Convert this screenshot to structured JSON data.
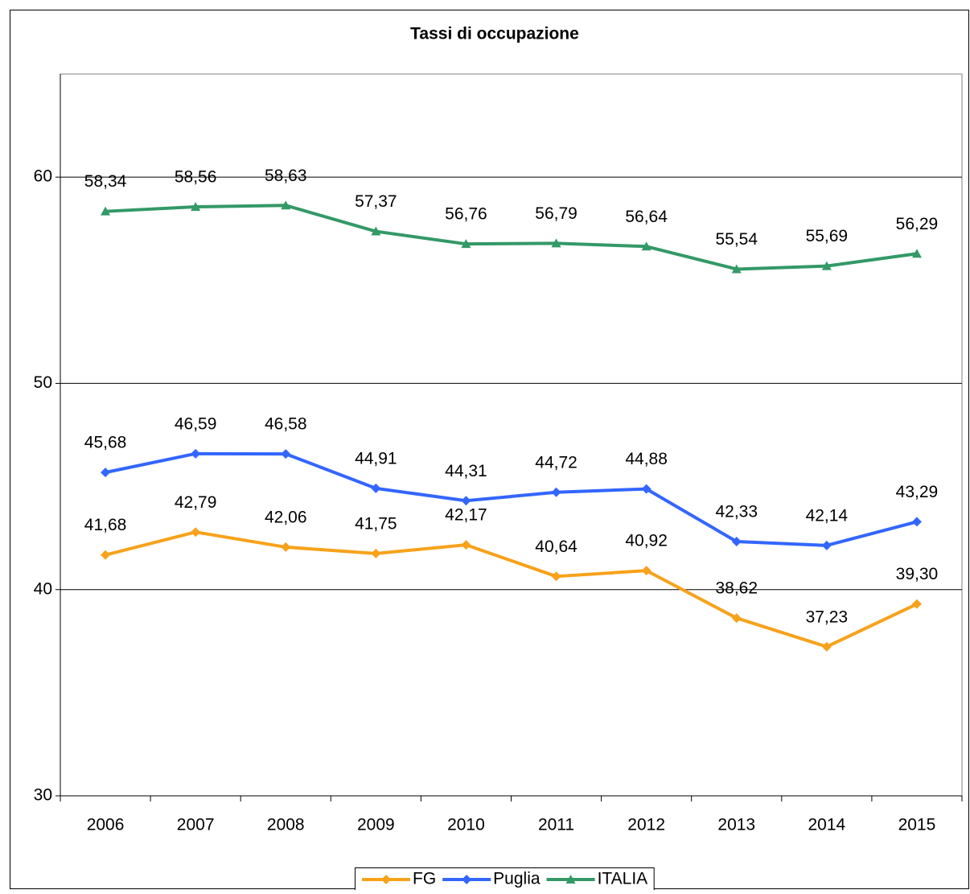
{
  "chart_data": {
    "type": "line",
    "title": "Tassi di occupazione",
    "categories": [
      "2006",
      "2007",
      "2008",
      "2009",
      "2010",
      "2011",
      "2012",
      "2013",
      "2014",
      "2015"
    ],
    "series": [
      {
        "name": "FG",
        "color": "#f7a21b",
        "marker": "diamond",
        "values": [
          41.68,
          42.79,
          42.06,
          41.75,
          42.17,
          40.64,
          40.92,
          38.62,
          37.23,
          39.3
        ],
        "value_labels": [
          "41,68",
          "42,79",
          "42,06",
          "41,75",
          "42,17",
          "40,64",
          "40,92",
          "38,62",
          "37,23",
          "39,30"
        ]
      },
      {
        "name": "Puglia",
        "color": "#3366ff",
        "marker": "diamond",
        "values": [
          45.68,
          46.59,
          46.58,
          44.91,
          44.31,
          44.72,
          44.88,
          42.33,
          42.14,
          43.29
        ],
        "value_labels": [
          "45,68",
          "46,59",
          "46,58",
          "44,91",
          "44,31",
          "44,72",
          "44,88",
          "42,33",
          "42,14",
          "43,29"
        ]
      },
      {
        "name": "ITALIA",
        "color": "#339966",
        "marker": "triangle",
        "values": [
          58.34,
          58.56,
          58.63,
          57.37,
          56.76,
          56.79,
          56.64,
          55.54,
          55.69,
          56.29
        ],
        "value_labels": [
          "58,34",
          "58,56",
          "58,63",
          "57,37",
          "56,76",
          "56,79",
          "56,64",
          "55,54",
          "55,69",
          "56,29"
        ]
      }
    ],
    "ylim": [
      30,
      65
    ],
    "yticks": [
      30,
      40,
      50,
      60
    ],
    "grid": true,
    "legend": "bottom"
  }
}
